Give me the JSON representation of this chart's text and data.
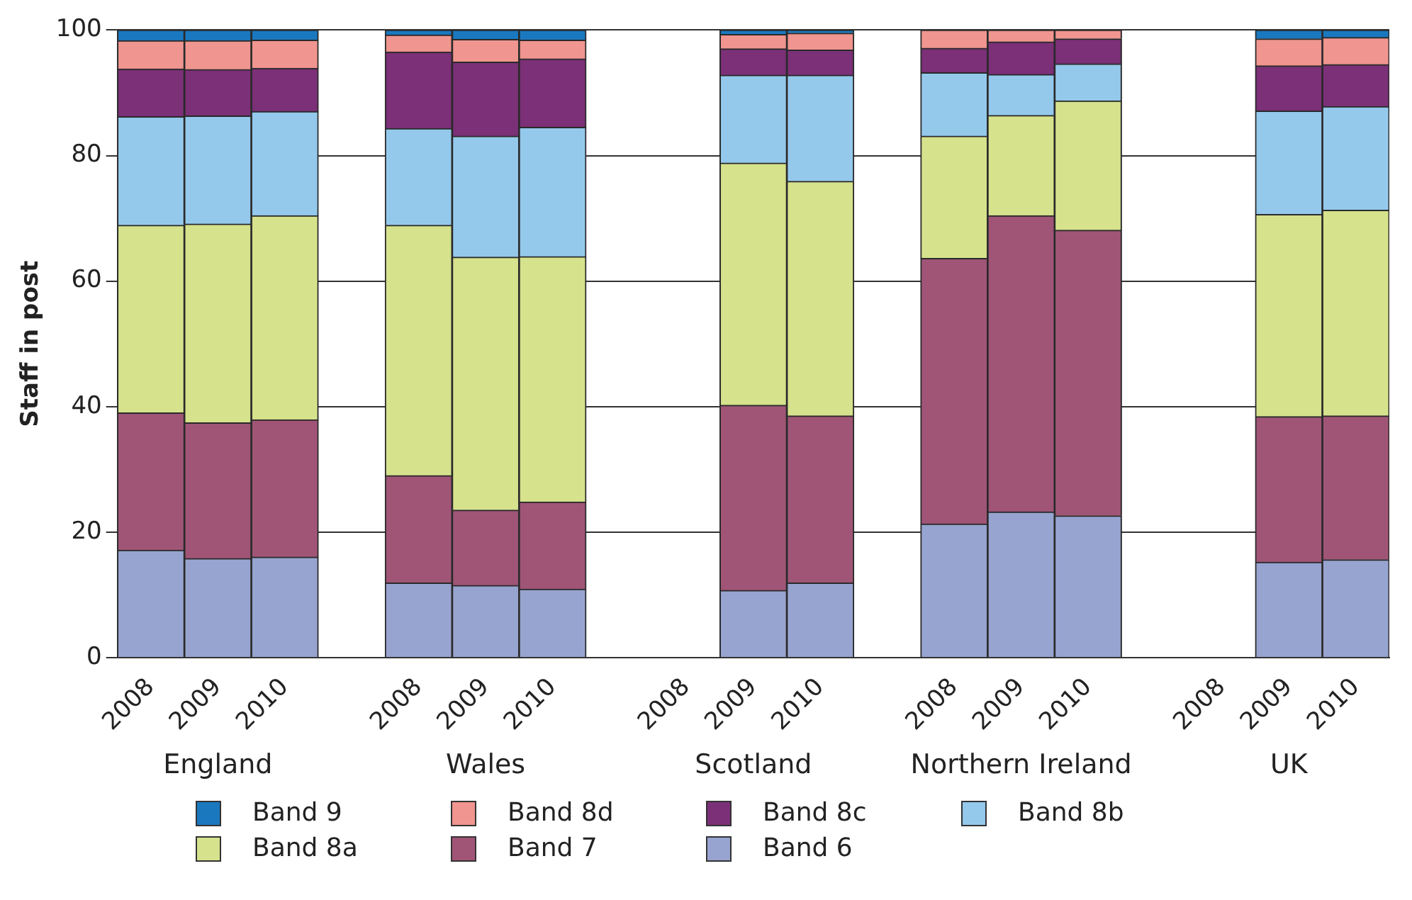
{
  "chart_data": {
    "type": "bar",
    "stacked": true,
    "ylabel": "Staff in post",
    "categories": [
      "2008",
      "2009",
      "2010",
      null,
      "2008",
      "2009",
      "2010",
      null,
      "2008",
      "2009",
      "2010",
      null,
      "2008",
      "2009",
      "2010",
      null,
      "2008",
      "2009",
      "2010"
    ],
    "series": [
      {
        "name": "Band 6",
        "color": "#98a4d0",
        "values": [
          17.1,
          15.8,
          16.0,
          null,
          11.9,
          11.5,
          10.9,
          null,
          null,
          10.7,
          11.9,
          null,
          21.3,
          23.2,
          22.6,
          null,
          null,
          15.2,
          15.6
        ]
      },
      {
        "name": "Band 7",
        "color": "#a05577",
        "values": [
          21.9,
          21.6,
          21.9,
          null,
          17.1,
          12.0,
          13.9,
          null,
          null,
          29.5,
          26.6,
          null,
          42.3,
          47.2,
          45.5,
          null,
          null,
          23.2,
          22.9
        ]
      },
      {
        "name": "Band 8a",
        "color": "#d6e28c",
        "values": [
          29.9,
          31.7,
          32.5,
          null,
          39.9,
          40.3,
          39.1,
          null,
          null,
          38.6,
          37.4,
          null,
          19.5,
          16.0,
          20.6,
          null,
          null,
          32.2,
          32.8
        ]
      },
      {
        "name": "Band 8b",
        "color": "#94c9ec",
        "values": [
          17.3,
          17.2,
          16.6,
          null,
          15.4,
          19.3,
          20.6,
          null,
          null,
          14.0,
          16.9,
          null,
          10.1,
          6.5,
          5.9,
          null,
          null,
          16.5,
          16.5
        ]
      },
      {
        "name": "Band 8c",
        "color": "#7b3077",
        "values": [
          7.6,
          7.4,
          6.9,
          null,
          12.2,
          11.8,
          10.9,
          null,
          null,
          4.2,
          4.0,
          null,
          3.9,
          5.2,
          4.0,
          null,
          null,
          7.2,
          6.7
        ]
      },
      {
        "name": "Band 8d",
        "color": "#f0958f",
        "values": [
          4.5,
          4.6,
          4.5,
          null,
          2.7,
          3.6,
          3.0,
          null,
          null,
          2.3,
          2.7,
          null,
          2.9,
          1.9,
          1.4,
          null,
          null,
          4.3,
          4.3
        ]
      },
      {
        "name": "Band 9",
        "color": "#1a78bf",
        "values": [
          1.7,
          1.7,
          1.6,
          null,
          0.8,
          1.5,
          1.6,
          null,
          null,
          0.7,
          0.5,
          null,
          0,
          0,
          0,
          null,
          null,
          1.4,
          1.2
        ]
      }
    ],
    "ylim": [
      0,
      100
    ],
    "yticks": [
      0,
      20,
      40,
      60,
      80,
      100
    ],
    "grid": "y",
    "legend": "bottom",
    "annotations": [
      "England",
      "Wales",
      "Scotland",
      "Northern Ireland",
      "UK"
    ]
  }
}
